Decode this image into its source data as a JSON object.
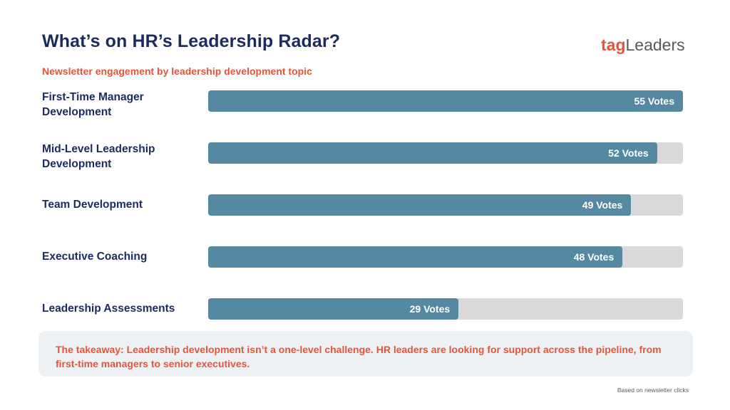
{
  "title": "What’s on HR’s Leadership Radar?",
  "logo": {
    "part1": "tag",
    "part2": "Leaders"
  },
  "subtitle": "Newsletter engagement by leadership development topic",
  "chart_data": {
    "type": "bar",
    "orientation": "horizontal",
    "categories": [
      "First-Time Manager Development",
      "Mid-Level Leadership Development",
      "Team Development",
      "Executive Coaching",
      "Leadership Assessments"
    ],
    "values": [
      55,
      52,
      49,
      48,
      29
    ],
    "value_labels": [
      "55 Votes",
      "52 Votes",
      "49 Votes",
      "48 Votes",
      "29 Votes"
    ],
    "xlim": [
      0,
      55
    ],
    "grid": false,
    "colors": {
      "bar": "#5589a2",
      "track": "#d9d9d9"
    }
  },
  "takeaway": "The takeaway: Leadership development isn’t a one-level challenge. HR leaders are looking for support across the pipeline, from first-time managers to senior executives.",
  "source_note": "Based on newsletter clicks",
  "colors": {
    "navy": "#1b2b5e",
    "accent": "#e5553a",
    "bar": "#5589a2",
    "track": "#d9d9d9"
  }
}
